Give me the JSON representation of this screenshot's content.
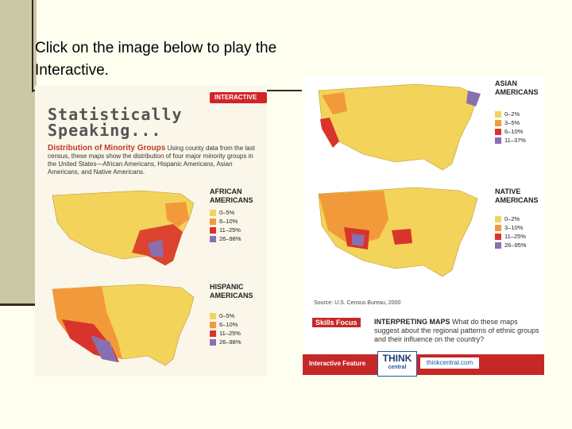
{
  "slide_text": "Click on the image below to play the Interactive.",
  "left_panel": {
    "tag": "INTERACTIVE",
    "close_icon": "close-icon",
    "title": "Statistically Speaking...",
    "heading": "Distribution of Minority Groups",
    "body": "Using county data from the last census, these maps show the distribution of four major minority groups in the United States—African Americans, Hispanic Americans, Asian Americans, and Native Americans.",
    "maps": [
      {
        "label_line1": "AFRICAN",
        "label_line2": "AMERICANS",
        "legend": [
          "0–5%",
          "6–10%",
          "11–25%",
          "26–98%"
        ]
      },
      {
        "label_line1": "HISPANIC",
        "label_line2": "AMERICANS",
        "legend": [
          "0–5%",
          "6–10%",
          "11–25%",
          "26–98%"
        ]
      }
    ]
  },
  "right_panel": {
    "maps": [
      {
        "label_line1": "ASIAN",
        "label_line2": "AMERICANS",
        "legend": [
          "0–2%",
          "3–5%",
          "6–10%",
          "11–37%"
        ]
      },
      {
        "label_line1": "NATIVE",
        "label_line2": "AMERICANS",
        "legend": [
          "0–2%",
          "3–10%",
          "11–25%",
          "26–95%"
        ]
      }
    ],
    "source": "Source: U.S. Census Bureau, 2000",
    "skills_tag": "Skills Focus",
    "skills_head": "INTERPRETING MAPS",
    "skills_text": "What do these maps suggest about the regional patterns of ethnic groups and their influence on the country?",
    "footer": {
      "label": "Interactive Feature",
      "think": "THINK",
      "think_sub": "central",
      "url": "thinkcentral.com"
    }
  },
  "colors": {
    "low": "#f3d35a",
    "mid": "#f29a3a",
    "high": "#d9342b",
    "top": "#8a6fb0",
    "accent": "#c62828"
  }
}
